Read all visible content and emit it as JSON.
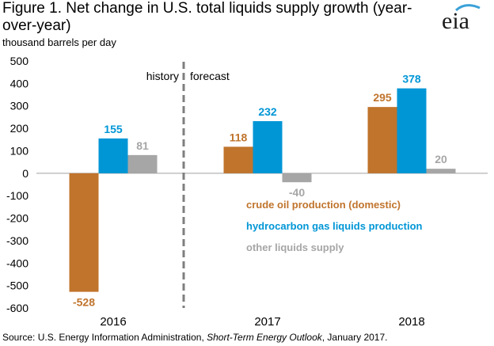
{
  "title": "Figure 1. Net change in U.S. total liquids supply growth (year-over-year)",
  "logo_text": "eia",
  "source": {
    "prefix": "Source: U.S. Energy Information Administration, ",
    "publication": "Short-Term Energy Outlook",
    "suffix": ", January 2017."
  },
  "colors": {
    "crude": "#c0742c",
    "hgl": "#0096d6",
    "other": "#a6a6a6",
    "divider": "#7f7f7f",
    "logo_accent": "#3aa1d8"
  },
  "chart_data": {
    "type": "bar",
    "ylabel": "thousand barrels per day",
    "categories": [
      "2016",
      "2017",
      "2018"
    ],
    "ylim": [
      -600,
      500
    ],
    "yticks": [
      500,
      400,
      300,
      200,
      100,
      0,
      -100,
      -200,
      -300,
      -400,
      -500,
      -600
    ],
    "series": [
      {
        "name": "crude oil production (domestic)",
        "values": [
          -528,
          118,
          295
        ]
      },
      {
        "name": "hydrocarbon gas liquids production",
        "values": [
          155,
          232,
          378
        ]
      },
      {
        "name": "other liquids supply",
        "values": [
          81,
          -40,
          20
        ]
      }
    ],
    "annotations": {
      "history": "history",
      "forecast": "forecast"
    },
    "legend_position": "inside-lower-right",
    "grid": false
  }
}
